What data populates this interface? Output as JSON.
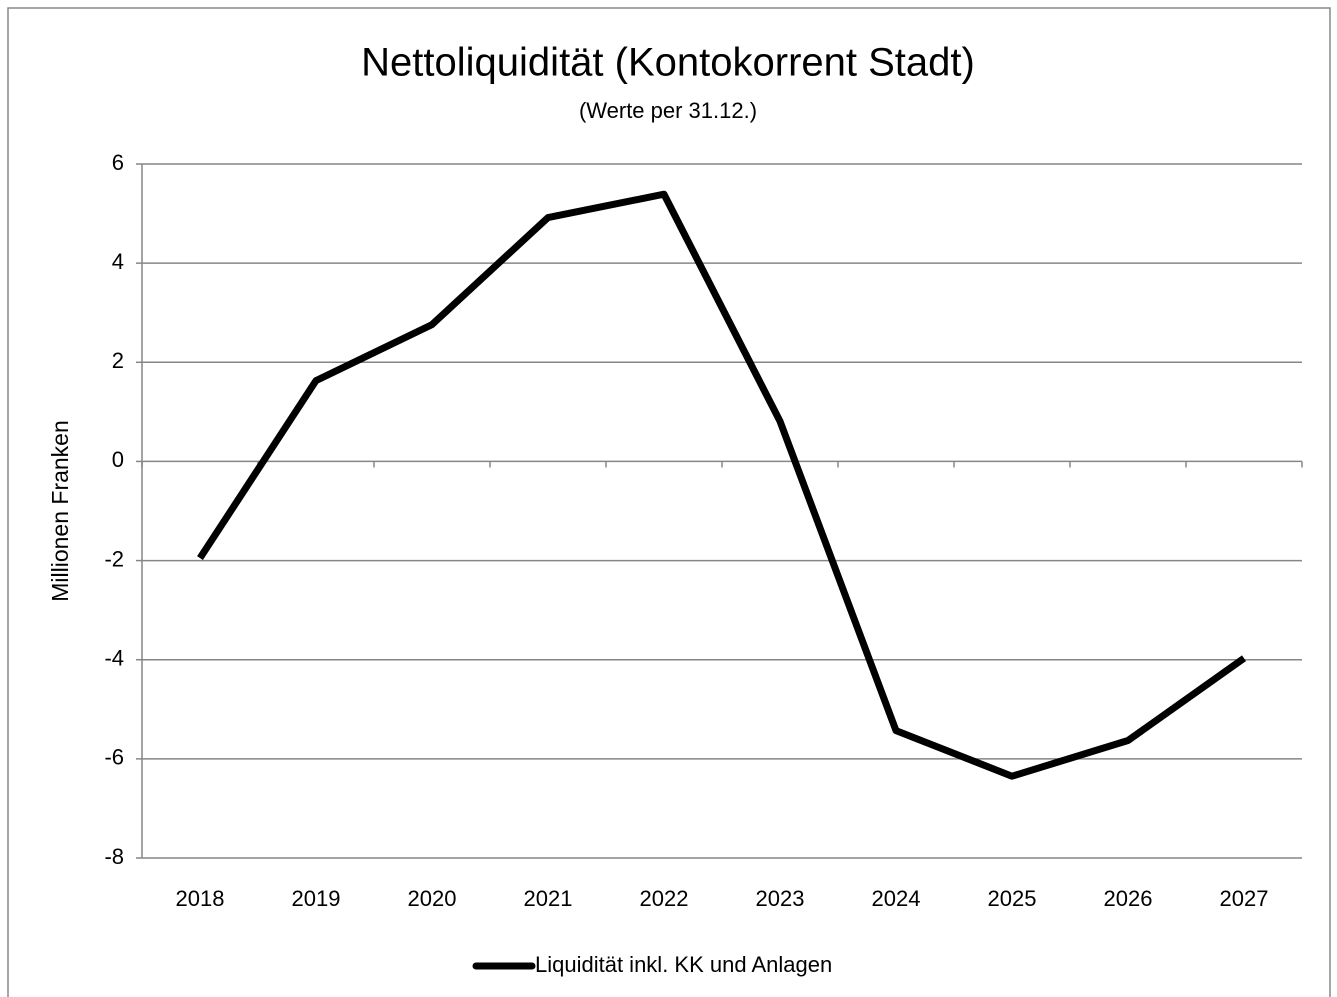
{
  "chart_data": {
    "type": "line",
    "title": "Nettoliquidität (Kontokorrent Stadt)",
    "subtitle": "(Werte per 31.12.)",
    "y_label": "Millionen Franken",
    "categories": [
      "2018",
      "2019",
      "2020",
      "2021",
      "2022",
      "2023",
      "2024",
      "2025",
      "2026",
      "2027"
    ],
    "series": [
      {
        "name": "Liquidität inkl. KK und Anlagen",
        "color": "#000000",
        "values": [
          -1.95,
          1.63,
          2.76,
          4.92,
          5.39,
          0.81,
          -5.43,
          -6.35,
          -5.63,
          -3.97
        ]
      }
    ],
    "ylim": [
      -8,
      6
    ],
    "yticks": [
      -8,
      -6,
      -4,
      -2,
      0,
      2,
      4,
      6
    ],
    "grid": true,
    "legend": "bottom"
  }
}
